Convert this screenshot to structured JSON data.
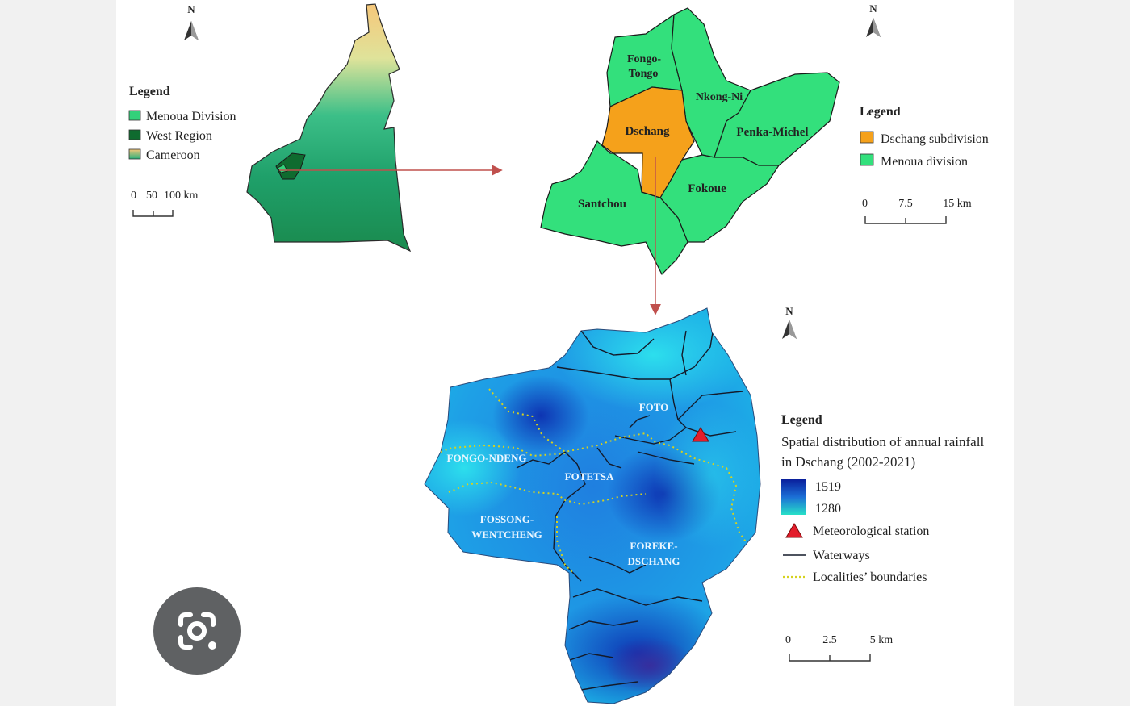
{
  "map1": {
    "north": "N",
    "legend_title": "Legend",
    "legend_items": [
      {
        "label": "Menoua Division",
        "color": "#33d17a"
      },
      {
        "label": "West Region",
        "color": "#0f6b2f"
      },
      {
        "label": "Cameroon",
        "color": "gradient-yellow-green"
      }
    ],
    "scale_labels": [
      "0",
      "50",
      "100 km"
    ]
  },
  "map2": {
    "north": "N",
    "legend_title": "Legend",
    "legend_items": [
      {
        "label": "Dschang subdivision",
        "color": "#f5a11b"
      },
      {
        "label": "Menoua division",
        "color": "#33e07c"
      }
    ],
    "places": [
      "Fongo-",
      "Tongo",
      "Nkong-Ni",
      "Dschang",
      "Penka-Michel",
      "Santchou",
      "Fokoue"
    ],
    "scale_labels": [
      "0",
      "7.5",
      "15 km"
    ]
  },
  "map3": {
    "north": "N",
    "legend_title": "Legend",
    "legend_subtitle_1": "Spatial distribution of annual rainfall",
    "legend_subtitle_2": "in Dschang (2002-2021)",
    "rainfall_max": "1519",
    "rainfall_min": "1280",
    "station_label": "Meteorological station",
    "waterways_label": "Waterways",
    "boundaries_label": "Localities’ boundaries",
    "localities": [
      "FOTO",
      "FONGO-NDENG",
      "FOTETSA",
      "FOSSONG-",
      "WENTCHENG",
      "FOREKE-",
      "DSCHANG"
    ],
    "scale_labels": [
      "0",
      "2.5",
      "5 km"
    ],
    "colors": {
      "high": "#0a1f9c",
      "low": "#19d7e8",
      "station": "#e31d2b",
      "boundary": "#d6d21f"
    }
  },
  "overlay": {
    "icon": "lens-search-icon"
  }
}
